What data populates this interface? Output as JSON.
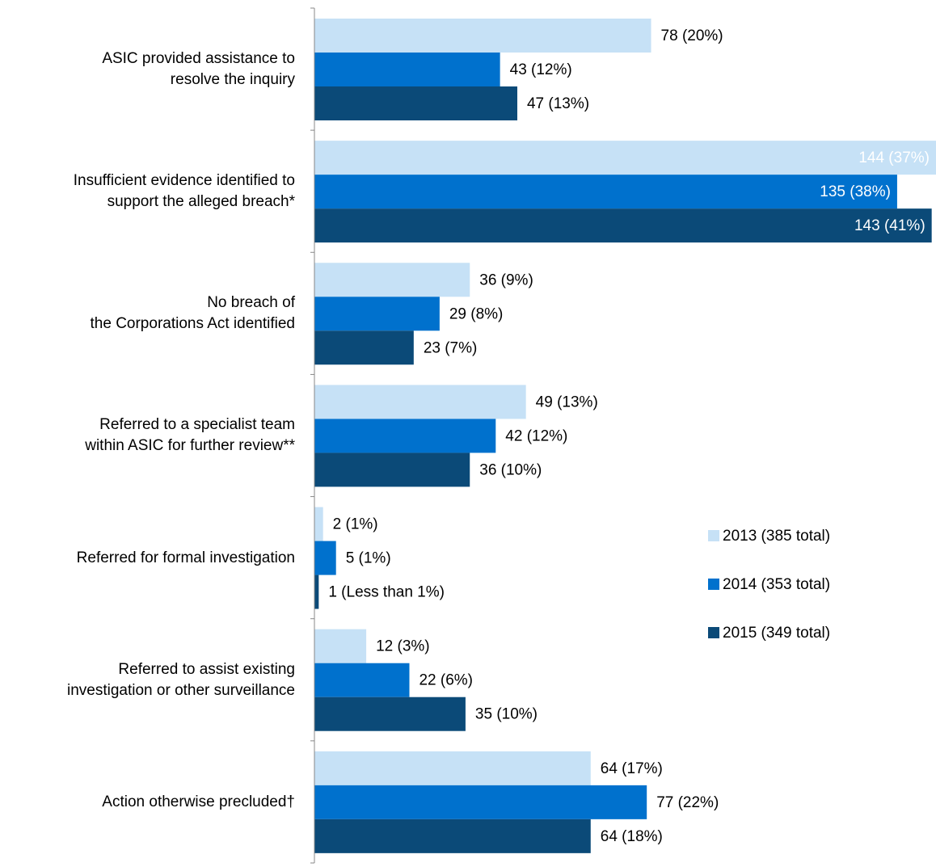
{
  "chart_data": {
    "type": "bar",
    "orientation": "horizontal",
    "categories": [
      "ASIC provided assistance to\nresolve the inquiry",
      "Insufficient evidence identified to\nsupport the alleged breach*",
      "No breach of\nthe Corporations Act identified",
      "Referred to a specialist team\nwithin ASIC for further review**",
      "Referred for formal investigation",
      "Referred to assist existing\ninvestigation or other surveillance",
      "Action otherwise precluded†"
    ],
    "series": [
      {
        "name": "2013 (385 total)",
        "color": "#c6e1f6",
        "values": [
          78,
          144,
          36,
          49,
          2,
          12,
          64
        ],
        "value_labels": [
          "78 (20%)",
          "144 (37%)",
          "36 (9%)",
          "49 (13%)",
          "2 (1%)",
          "12 (3%)",
          "64 (17%)"
        ]
      },
      {
        "name": "2014 (353 total)",
        "color": "#0071cd",
        "values": [
          43,
          135,
          29,
          42,
          5,
          22,
          77
        ],
        "value_labels": [
          "43 (12%)",
          "135 (38%)",
          "29 (8%)",
          "42 (12%)",
          "5 (1%)",
          "22 (6%)",
          "77 (22%)"
        ]
      },
      {
        "name": "2015 (349 total)",
        "color": "#0b4a78",
        "values": [
          47,
          143,
          23,
          36,
          1,
          35,
          64
        ],
        "value_labels": [
          "47 (13%)",
          "143 (41%)",
          "23 (7%)",
          "36 (10%)",
          "1 (Less than 1%)",
          "35 (10%)",
          "64 (18%)"
        ]
      }
    ],
    "xlim": [
      0,
      144
    ],
    "legend": "right"
  }
}
